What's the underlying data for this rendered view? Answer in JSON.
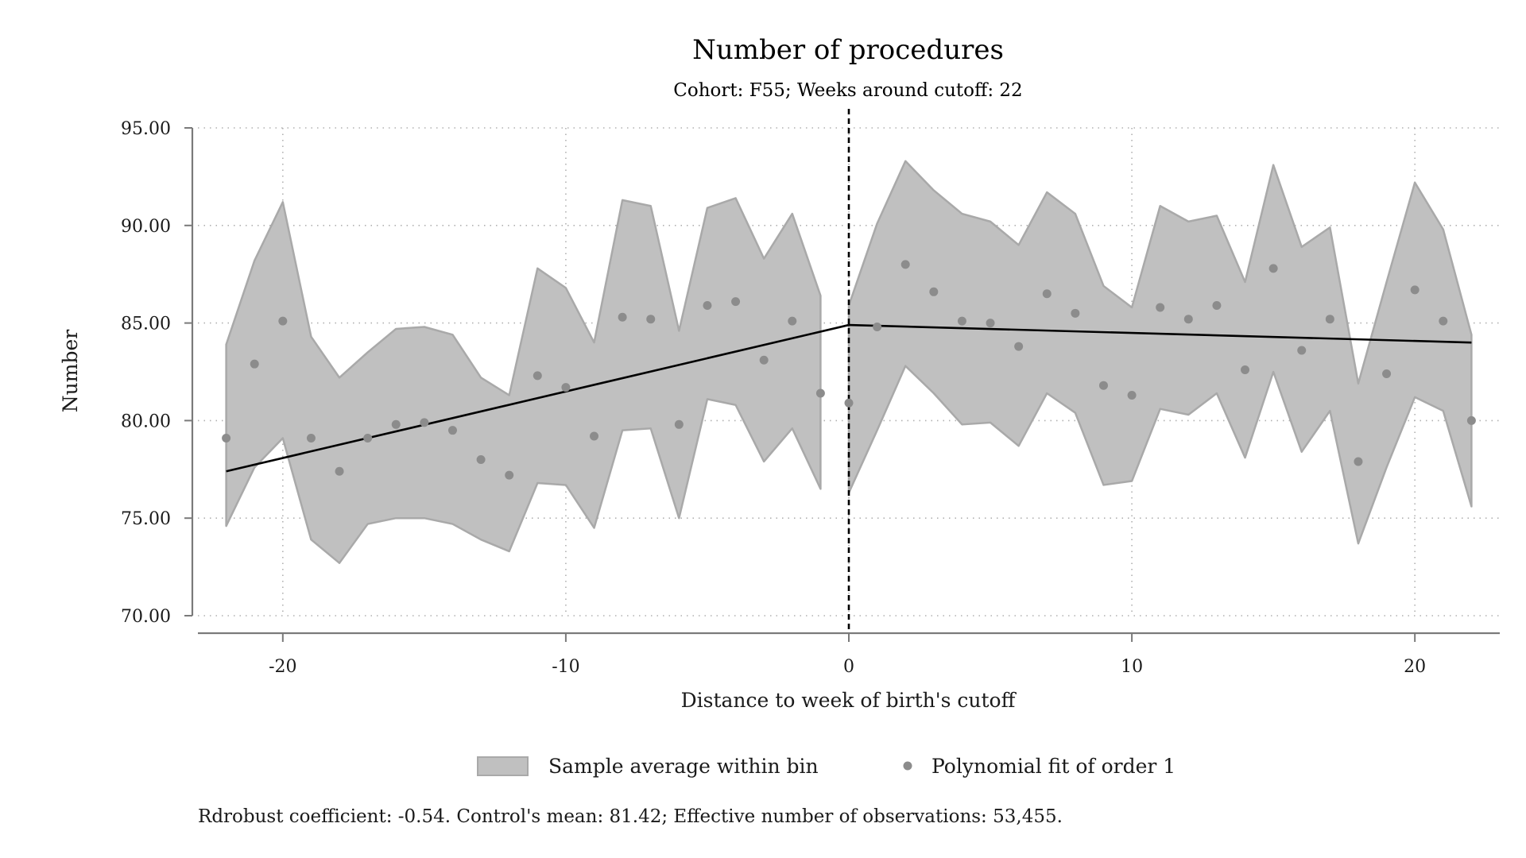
{
  "chart_data": {
    "type": "scatter",
    "title": "Number of procedures",
    "subtitle": "Cohort: F55; Weeks around cutoff: 22",
    "xlabel": "Distance to week of birth's cutoff",
    "ylabel": "Number",
    "xlim": [
      -23,
      23
    ],
    "ylim": [
      70,
      95
    ],
    "xticks": [
      -20,
      -10,
      0,
      10,
      20
    ],
    "yticks": [
      70,
      75,
      80,
      85,
      90,
      95
    ],
    "ytick_labels": [
      "70.00",
      "75.00",
      "80.00",
      "85.00",
      "90.00",
      "95.00"
    ],
    "grid": true,
    "cutoff": 0,
    "legend": {
      "placement": "bottom",
      "band_label": "Sample average within bin",
      "points_label": "Polynomial fit of order 1"
    },
    "note": "Rdrobust coefficient: -0.54. Control's mean: 81.42; Effective number of observations: 53,455.",
    "colors": {
      "band": "#c0c0c0",
      "band_edge": "#a9a9a9",
      "points": "#8c8c8c",
      "fit": "#000000",
      "grid": "#b0b0b0"
    },
    "points": [
      {
        "x": -22,
        "y": 79.1
      },
      {
        "x": -21,
        "y": 82.9
      },
      {
        "x": -20,
        "y": 85.1
      },
      {
        "x": -19,
        "y": 79.1
      },
      {
        "x": -18,
        "y": 77.4
      },
      {
        "x": -17,
        "y": 79.1
      },
      {
        "x": -16,
        "y": 79.8
      },
      {
        "x": -15,
        "y": 79.9
      },
      {
        "x": -14,
        "y": 79.5
      },
      {
        "x": -13,
        "y": 78.0
      },
      {
        "x": -12,
        "y": 77.2
      },
      {
        "x": -11,
        "y": 82.3
      },
      {
        "x": -10,
        "y": 81.7
      },
      {
        "x": -9,
        "y": 79.2
      },
      {
        "x": -8,
        "y": 85.3
      },
      {
        "x": -7,
        "y": 85.2
      },
      {
        "x": -6,
        "y": 79.8
      },
      {
        "x": -5,
        "y": 85.9
      },
      {
        "x": -4,
        "y": 86.1
      },
      {
        "x": -3,
        "y": 83.1
      },
      {
        "x": -2,
        "y": 85.1
      },
      {
        "x": -1,
        "y": 81.4
      },
      {
        "x": 0,
        "y": 80.9
      },
      {
        "x": 1,
        "y": 84.8
      },
      {
        "x": 2,
        "y": 88.0
      },
      {
        "x": 3,
        "y": 86.6
      },
      {
        "x": 4,
        "y": 85.1
      },
      {
        "x": 5,
        "y": 85.0
      },
      {
        "x": 6,
        "y": 83.8
      },
      {
        "x": 7,
        "y": 86.5
      },
      {
        "x": 8,
        "y": 85.5
      },
      {
        "x": 9,
        "y": 81.8
      },
      {
        "x": 10,
        "y": 81.3
      },
      {
        "x": 11,
        "y": 85.8
      },
      {
        "x": 12,
        "y": 85.2
      },
      {
        "x": 13,
        "y": 85.9
      },
      {
        "x": 14,
        "y": 82.6
      },
      {
        "x": 15,
        "y": 87.8
      },
      {
        "x": 16,
        "y": 83.6
      },
      {
        "x": 17,
        "y": 85.2
      },
      {
        "x": 18,
        "y": 77.9
      },
      {
        "x": 19,
        "y": 82.4
      },
      {
        "x": 20,
        "y": 86.7
      },
      {
        "x": 21,
        "y": 85.1
      },
      {
        "x": 22,
        "y": 80.0
      }
    ],
    "band_left": {
      "x": [
        -22,
        -21,
        -20,
        -19,
        -18,
        -17,
        -16,
        -15,
        -14,
        -13,
        -12,
        -11,
        -10,
        -9,
        -8,
        -7,
        -6,
        -5,
        -4,
        -3,
        -2,
        -1
      ],
      "upper": [
        83.9,
        88.2,
        91.2,
        84.3,
        82.2,
        83.5,
        84.7,
        84.8,
        84.4,
        82.2,
        81.3,
        87.8,
        86.8,
        84.0,
        91.3,
        91.0,
        84.6,
        90.9,
        91.4,
        88.3,
        90.6,
        86.4
      ],
      "lower": [
        74.6,
        77.6,
        79.1,
        73.9,
        72.7,
        74.7,
        75.0,
        75.0,
        74.7,
        73.9,
        73.3,
        76.8,
        76.7,
        74.5,
        79.5,
        79.6,
        75.0,
        81.1,
        80.8,
        77.9,
        79.6,
        76.5
      ]
    },
    "band_right": {
      "x": [
        0,
        1,
        2,
        3,
        4,
        5,
        6,
        7,
        8,
        9,
        10,
        11,
        12,
        13,
        14,
        15,
        16,
        17,
        18,
        19,
        20,
        21,
        22
      ],
      "upper": [
        85.9,
        90.1,
        93.3,
        91.8,
        90.6,
        90.2,
        89.0,
        91.7,
        90.6,
        86.9,
        85.8,
        91.0,
        90.2,
        90.5,
        87.1,
        93.1,
        88.9,
        89.9,
        81.9,
        87.1,
        92.2,
        89.8,
        84.4
      ],
      "lower": [
        76.3,
        79.5,
        82.8,
        81.4,
        79.8,
        79.9,
        78.7,
        81.4,
        80.4,
        76.7,
        76.9,
        80.6,
        80.3,
        81.4,
        78.1,
        82.5,
        78.4,
        80.5,
        73.7,
        77.6,
        81.2,
        80.5,
        75.6
      ]
    },
    "fit_left": {
      "x": [
        -22,
        0
      ],
      "y": [
        77.4,
        84.9
      ]
    },
    "fit_right": {
      "x": [
        0,
        22
      ],
      "y": [
        84.9,
        84.0
      ]
    }
  }
}
